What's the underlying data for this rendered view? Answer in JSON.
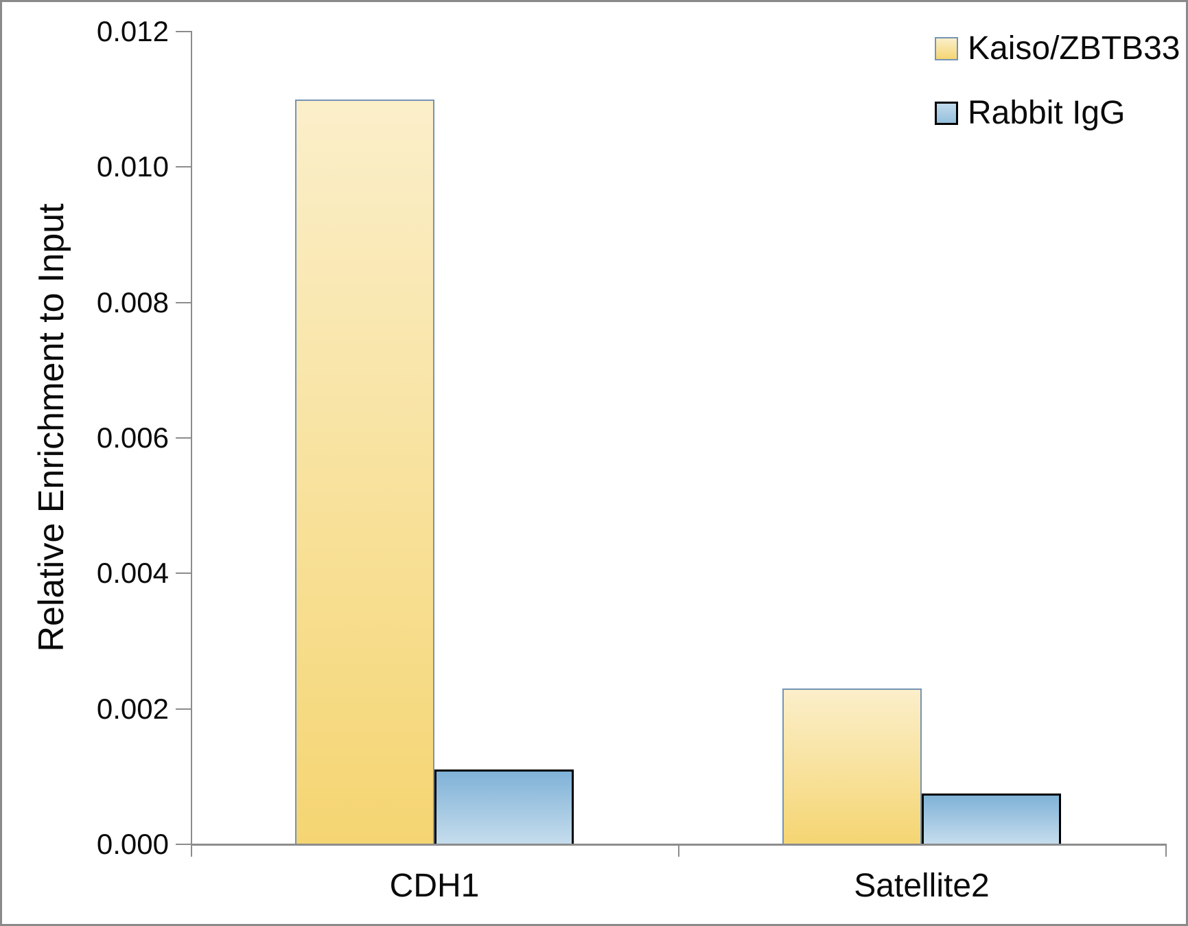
{
  "figure": {
    "background": "#FFFFFF",
    "border_color": "#8A8A8A",
    "axis_color": "#8C8C8C",
    "text_color": "#0A0A0A"
  },
  "chart_data": {
    "type": "bar",
    "title": "",
    "categories": [
      "CDH1",
      "Satellite2"
    ],
    "series": [
      {
        "name": "Kaiso/ZBTB33",
        "values": [
          0.011,
          0.0023
        ],
        "fill_top": "#FBEFCA",
        "fill_bottom": "#F5D572",
        "border": "#7593B5"
      },
      {
        "name": "Rabbit IgG",
        "values": [
          0.0011,
          0.00075
        ],
        "fill_top": "#7FB2D7",
        "fill_bottom": "#C6DDED",
        "border": "#000000"
      }
    ],
    "ylabel": "Relative Enrichment to Input",
    "xlabel": "",
    "ylim": [
      0,
      0.012
    ],
    "ytick_step": 0.002,
    "ytick_labels": [
      "0.000",
      "0.002",
      "0.004",
      "0.006",
      "0.008",
      "0.010",
      "0.012"
    ],
    "grid": false,
    "legend_position": "top-right"
  }
}
